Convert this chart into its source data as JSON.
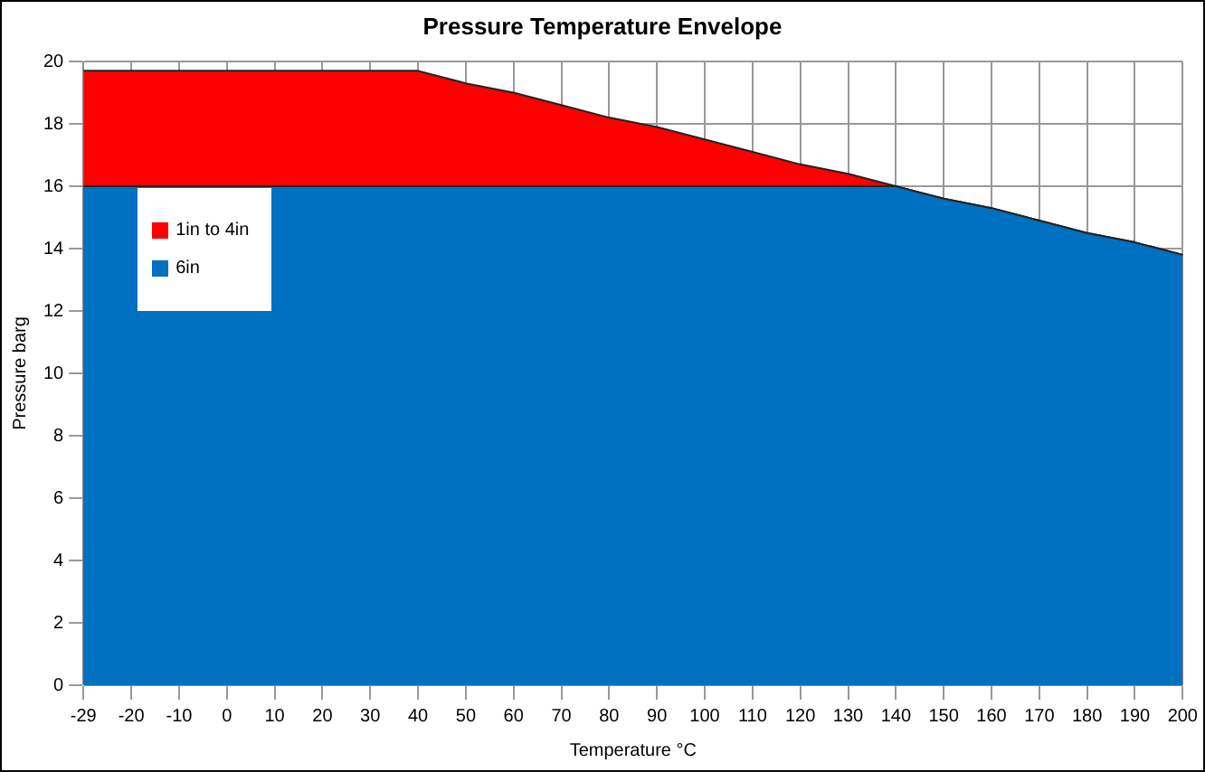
{
  "chart_data": {
    "type": "area",
    "title": "Pressure Temperature Envelope",
    "xlabel": "Temperature °C",
    "ylabel": "Pressure barg",
    "categories": [
      "-29",
      "-20",
      "-10",
      "0",
      "10",
      "20",
      "30",
      "40",
      "50",
      "60",
      "70",
      "80",
      "90",
      "100",
      "110",
      "120",
      "130",
      "140",
      "150",
      "160",
      "170",
      "180",
      "190",
      "200"
    ],
    "series": [
      {
        "name": "1in to 4in",
        "color": "#ff0000",
        "values": [
          19.7,
          19.7,
          19.7,
          19.7,
          19.7,
          19.7,
          19.7,
          19.7,
          19.3,
          19.0,
          18.6,
          18.2,
          17.9,
          17.5,
          17.1,
          16.7,
          16.4,
          16.0,
          15.6,
          15.3,
          14.9,
          14.5,
          14.2,
          13.8
        ]
      },
      {
        "name": "6in",
        "color": "#0070c0",
        "values": [
          16.0,
          16.0,
          16.0,
          16.0,
          16.0,
          16.0,
          16.0,
          16.0,
          16.0,
          16.0,
          16.0,
          16.0,
          16.0,
          16.0,
          16.0,
          16.0,
          16.0,
          16.0,
          15.6,
          15.3,
          14.9,
          14.5,
          14.2,
          13.8
        ]
      }
    ],
    "ylim": [
      0,
      20
    ],
    "yticks": [
      0,
      2,
      4,
      6,
      8,
      10,
      12,
      14,
      16,
      18,
      20
    ],
    "grid": true,
    "legend": "top left"
  }
}
